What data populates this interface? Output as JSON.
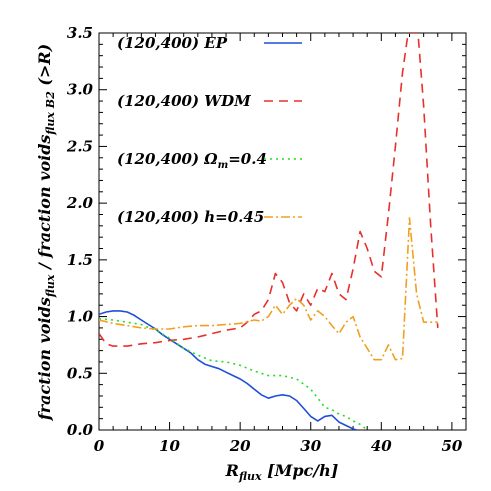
{
  "chart_data": {
    "type": "line",
    "xlabel": {
      "main": "R",
      "sub": "flux",
      "rest": " [Mpc/h]"
    },
    "ylabel": {
      "p1": "fraction voids",
      "s1": "flux",
      "p2": " / fraction voids",
      "s2": "flux B2",
      "p3": " (>R)"
    },
    "xlim": [
      0,
      52
    ],
    "ylim": [
      0,
      3.5
    ],
    "x_ticks": [
      0,
      10,
      20,
      30,
      40,
      50
    ],
    "x_tick_labels": [
      "0",
      "10",
      "20",
      "30",
      "40",
      "50"
    ],
    "y_ticks": [
      0.0,
      0.5,
      1.0,
      1.5,
      2.0,
      2.5,
      3.0,
      3.5
    ],
    "y_tick_labels": [
      "0.0",
      "0.5",
      "1.0",
      "1.5",
      "2.0",
      "2.5",
      "3.0",
      "3.5"
    ],
    "legend_placement": "top-left",
    "series": [
      {
        "name": "(120,400) EP",
        "legend_pre": "(120,400) EP",
        "color": "#1f4fd8",
        "dash": "",
        "points": [
          [
            0,
            1.02
          ],
          [
            1,
            1.04
          ],
          [
            2,
            1.05
          ],
          [
            3,
            1.05
          ],
          [
            4,
            1.04
          ],
          [
            5,
            1.01
          ],
          [
            6,
            0.97
          ],
          [
            7,
            0.93
          ],
          [
            8,
            0.89
          ],
          [
            9,
            0.84
          ],
          [
            10,
            0.8
          ],
          [
            11,
            0.76
          ],
          [
            12,
            0.72
          ],
          [
            13,
            0.68
          ],
          [
            14,
            0.62
          ],
          [
            15,
            0.58
          ],
          [
            16,
            0.56
          ],
          [
            17,
            0.54
          ],
          [
            18,
            0.51
          ],
          [
            19,
            0.48
          ],
          [
            20,
            0.45
          ],
          [
            21,
            0.41
          ],
          [
            22,
            0.36
          ],
          [
            23,
            0.31
          ],
          [
            24,
            0.28
          ],
          [
            25,
            0.3
          ],
          [
            26,
            0.31
          ],
          [
            27,
            0.3
          ],
          [
            28,
            0.26
          ],
          [
            29,
            0.19
          ],
          [
            30,
            0.12
          ],
          [
            31,
            0.08
          ],
          [
            32,
            0.12
          ],
          [
            33,
            0.13
          ],
          [
            34,
            0.07
          ],
          [
            35,
            0.04
          ],
          [
            36,
            0.01
          ],
          [
            36.5,
            0.0
          ]
        ]
      },
      {
        "name": "(120,400) WDM",
        "legend_pre": "(120,400) WDM",
        "color": "#e8302b",
        "dash": "9,6",
        "points": [
          [
            0,
            0.85
          ],
          [
            1,
            0.76
          ],
          [
            2,
            0.74
          ],
          [
            4,
            0.74
          ],
          [
            6,
            0.76
          ],
          [
            8,
            0.77
          ],
          [
            10,
            0.79
          ],
          [
            12,
            0.8
          ],
          [
            14,
            0.82
          ],
          [
            16,
            0.85
          ],
          [
            18,
            0.88
          ],
          [
            20,
            0.9
          ],
          [
            21,
            0.95
          ],
          [
            22,
            1.02
          ],
          [
            23,
            1.05
          ],
          [
            24,
            1.15
          ],
          [
            25,
            1.38
          ],
          [
            26,
            1.3
          ],
          [
            27,
            1.12
          ],
          [
            28,
            1.05
          ],
          [
            29,
            1.2
          ],
          [
            30,
            1.1
          ],
          [
            31,
            1.25
          ],
          [
            32,
            1.22
          ],
          [
            33,
            1.38
          ],
          [
            34,
            1.2
          ],
          [
            35,
            1.15
          ],
          [
            36,
            1.42
          ],
          [
            37,
            1.75
          ],
          [
            38,
            1.6
          ],
          [
            39,
            1.4
          ],
          [
            40,
            1.35
          ],
          [
            41,
            1.9
          ],
          [
            42,
            2.5
          ],
          [
            43,
            3.15
          ],
          [
            43.8,
            3.5
          ],
          [
            45.2,
            3.5
          ],
          [
            46,
            2.85
          ],
          [
            47,
            1.8
          ],
          [
            48,
            0.9
          ]
        ]
      },
      {
        "name": "(120,400) Ωm=0.4",
        "legend_pre": "(120,400) Ω",
        "legend_sub": "m",
        "legend_post": "=0.4",
        "color": "#22dd22",
        "dash": "2,4",
        "points": [
          [
            0,
            0.98
          ],
          [
            2,
            0.97
          ],
          [
            4,
            0.95
          ],
          [
            6,
            0.93
          ],
          [
            8,
            0.88
          ],
          [
            10,
            0.81
          ],
          [
            12,
            0.72
          ],
          [
            14,
            0.66
          ],
          [
            16,
            0.61
          ],
          [
            18,
            0.6
          ],
          [
            20,
            0.57
          ],
          [
            22,
            0.52
          ],
          [
            24,
            0.48
          ],
          [
            26,
            0.48
          ],
          [
            28,
            0.45
          ],
          [
            30,
            0.36
          ],
          [
            31,
            0.28
          ],
          [
            32,
            0.2
          ],
          [
            33,
            0.18
          ],
          [
            34,
            0.14
          ],
          [
            35,
            0.12
          ],
          [
            36,
            0.08
          ],
          [
            37,
            0.05
          ],
          [
            38,
            0.0
          ]
        ]
      },
      {
        "name": "(120,400) h=0.45",
        "legend_pre": "(120,400) h=0.45",
        "color": "#f0a020",
        "dash": "9,3,2,3",
        "points": [
          [
            0,
            0.97
          ],
          [
            2,
            0.94
          ],
          [
            4,
            0.92
          ],
          [
            6,
            0.9
          ],
          [
            8,
            0.89
          ],
          [
            10,
            0.89
          ],
          [
            12,
            0.91
          ],
          [
            14,
            0.92
          ],
          [
            16,
            0.92
          ],
          [
            18,
            0.93
          ],
          [
            20,
            0.94
          ],
          [
            22,
            0.97
          ],
          [
            23,
            0.96
          ],
          [
            24,
            1.0
          ],
          [
            25,
            1.1
          ],
          [
            26,
            1.02
          ],
          [
            27,
            1.1
          ],
          [
            28,
            1.16
          ],
          [
            29,
            1.1
          ],
          [
            30,
            0.97
          ],
          [
            31,
            1.05
          ],
          [
            32,
            1.0
          ],
          [
            33,
            0.92
          ],
          [
            34,
            0.85
          ],
          [
            35,
            0.95
          ],
          [
            36,
            1.0
          ],
          [
            37,
            0.82
          ],
          [
            38,
            0.72
          ],
          [
            39,
            0.62
          ],
          [
            40,
            0.62
          ],
          [
            41,
            0.75
          ],
          [
            42,
            0.62
          ],
          [
            43,
            0.63
          ],
          [
            44,
            1.87
          ],
          [
            45,
            1.2
          ],
          [
            46,
            0.95
          ],
          [
            47,
            0.95
          ],
          [
            48,
            0.95
          ]
        ]
      }
    ]
  }
}
